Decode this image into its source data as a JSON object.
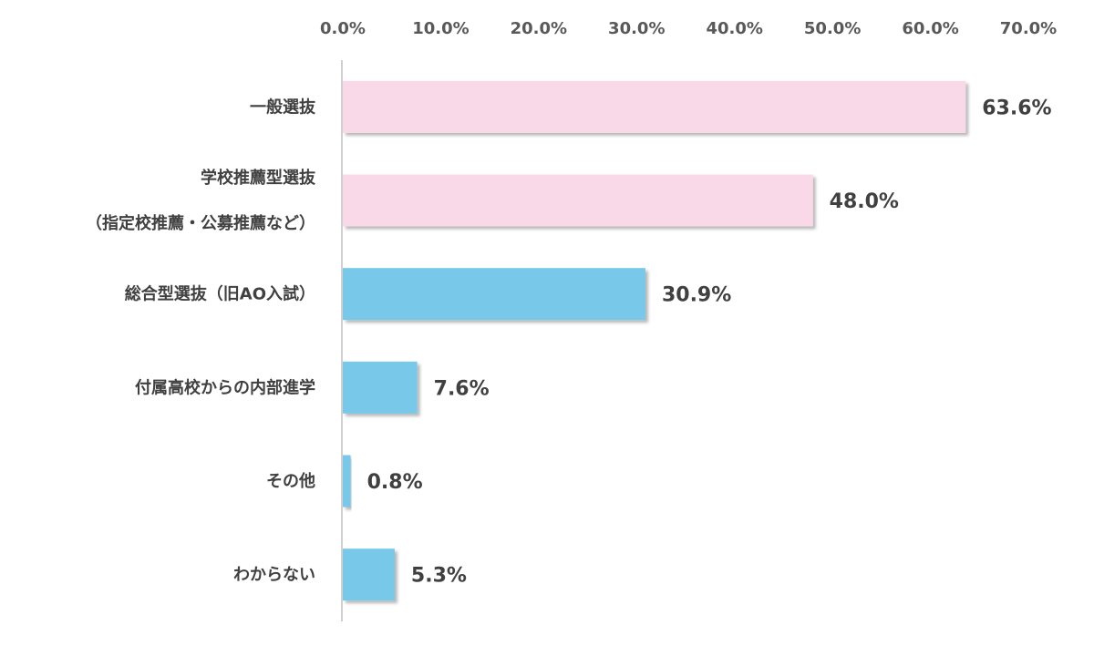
{
  "chart_data": {
    "type": "bar",
    "orientation": "horizontal",
    "categories": [
      [
        "一般選抜"
      ],
      [
        "学校推薦型選抜",
        "（指定校推薦・公募推薦など）"
      ],
      [
        "総合型選抜（旧AO入試）"
      ],
      [
        "付属高校からの内部進学"
      ],
      [
        "その他"
      ],
      [
        "わからない"
      ]
    ],
    "values": [
      63.6,
      48.0,
      30.9,
      7.6,
      0.8,
      5.3
    ],
    "data_labels": [
      "63.6%",
      "48.0%",
      "30.9%",
      "7.6%",
      "0.8%",
      "5.3%"
    ],
    "bar_colors": [
      "#f9d9e8",
      "#f9d9e8",
      "#78c8ea",
      "#78c8ea",
      "#78c8ea",
      "#78c8ea"
    ],
    "xlim": [
      0,
      70
    ],
    "x_ticks": [
      0,
      10,
      20,
      30,
      40,
      50,
      60,
      70
    ],
    "x_tick_labels": [
      "0.0%",
      "10.0%",
      "20.0%",
      "30.0%",
      "40.0%",
      "50.0%",
      "60.0%",
      "70.0%"
    ],
    "x_axis_position": "top",
    "grid": false,
    "legend": "none"
  }
}
